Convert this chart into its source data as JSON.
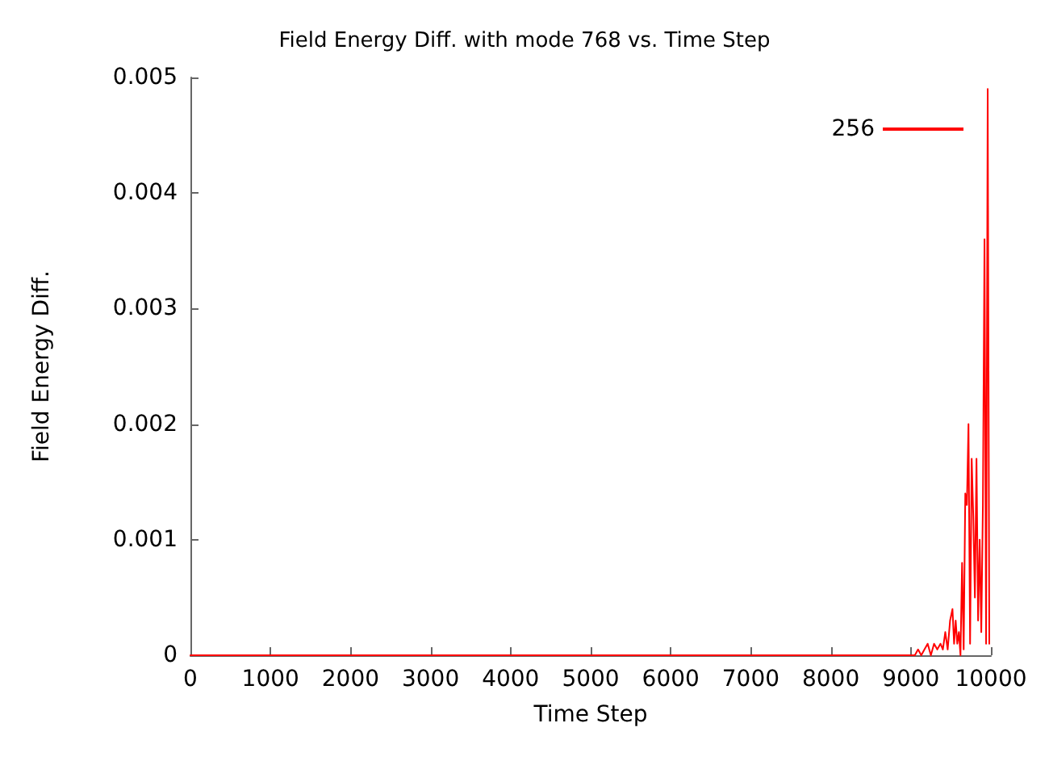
{
  "chart_data": {
    "type": "line",
    "title": "Field Energy Diff. with mode 768 vs. Time Step",
    "xlabel": "Time Step",
    "ylabel": "Field Energy Diff.",
    "xlim": [
      0,
      10000
    ],
    "xticks": [
      0,
      1000,
      2000,
      3000,
      4000,
      5000,
      6000,
      7000,
      8000,
      9000,
      10000
    ],
    "ylim": [
      0,
      0.005
    ],
    "yticks": [
      0,
      0.001,
      0.002,
      0.003,
      0.004,
      0.005
    ],
    "grid": false,
    "legend": "top right",
    "marker": "none",
    "line_style": "solid",
    "series": [
      {
        "name": "256",
        "color": "#ff0000",
        "x": [
          0,
          1000,
          2000,
          3000,
          4000,
          5000,
          6000,
          7000,
          8000,
          8800,
          8900,
          9000,
          9050,
          9090,
          9130,
          9170,
          9210,
          9250,
          9290,
          9330,
          9370,
          9400,
          9430,
          9460,
          9490,
          9520,
          9540,
          9560,
          9580,
          9600,
          9620,
          9640,
          9660,
          9680,
          9700,
          9720,
          9740,
          9760,
          9780,
          9800,
          9820,
          9840,
          9860,
          9880,
          9900,
          9920,
          9940,
          9960,
          9980
        ],
        "values": [
          0,
          0,
          0,
          0,
          0,
          0,
          0,
          0,
          0,
          0,
          0,
          0,
          0,
          5e-05,
          0,
          5e-05,
          0.0001,
          0,
          0.0001,
          5e-05,
          0.0001,
          5e-05,
          0.0002,
          5e-05,
          0.0003,
          0.0004,
          0.0001,
          0.0003,
          0.0001,
          0.0002,
          0,
          0.0008,
          5e-05,
          0.0014,
          0.0013,
          0.002,
          0.0001,
          0.0017,
          0.0012,
          0.0005,
          0.0017,
          0.0003,
          0.001,
          0.0002,
          0.0013,
          0.0036,
          0.0001,
          0.0049,
          0.0001
        ]
      }
    ]
  }
}
